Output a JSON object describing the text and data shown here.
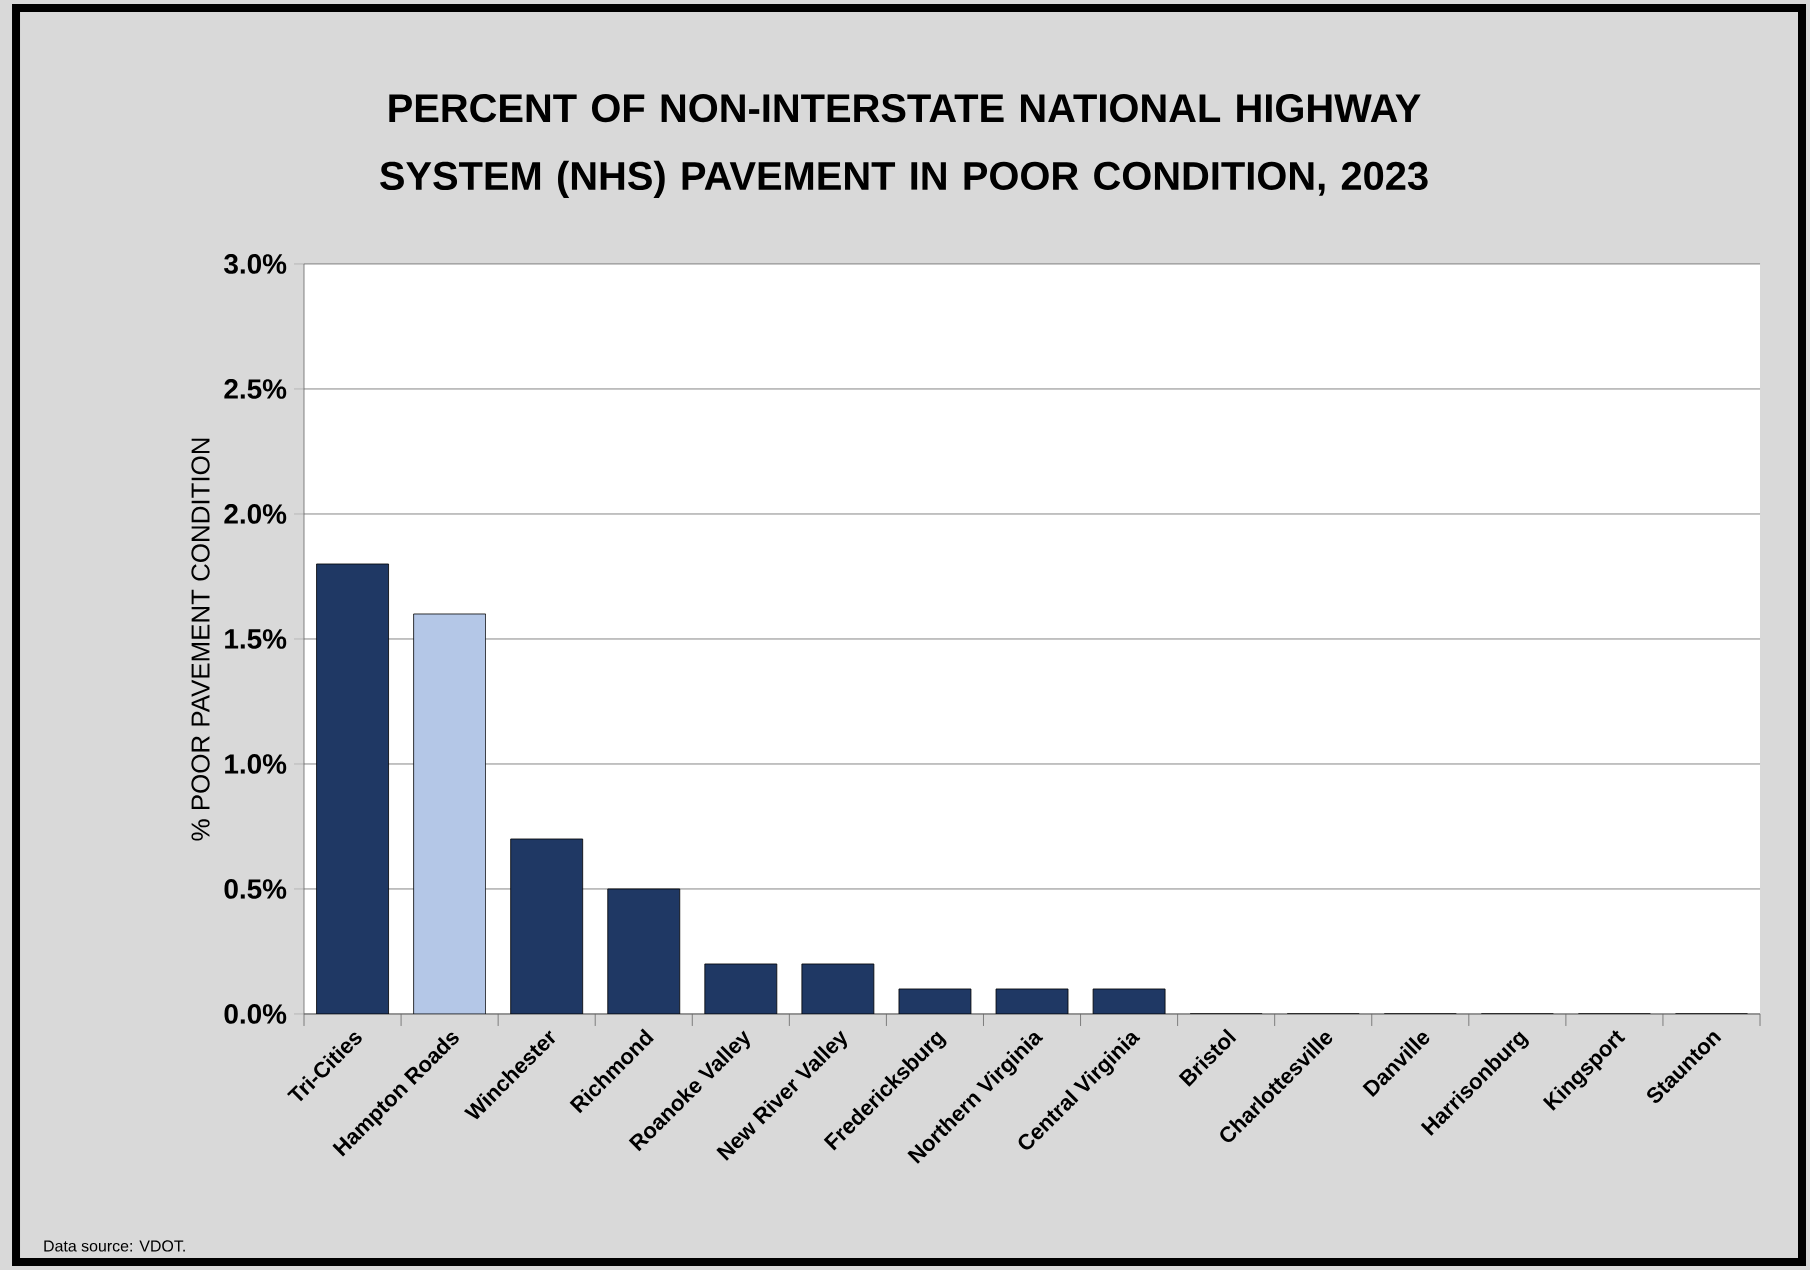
{
  "chart_data": {
    "type": "bar",
    "title": "PERCENT OF NON-INTERSTATE NATIONAL HIGHWAY SYSTEM (NHS) PAVEMENT IN POOR CONDITION, 2023",
    "ylabel": "% POOR PAVEMENT CONDITION",
    "annotations": [
      "Data source:  VDOT."
    ],
    "categories": [
      "Tri-Cities",
      "Hampton Roads",
      "Winchester",
      "Richmond",
      "Roanoke Valley",
      "New River Valley",
      "Fredericksburg",
      "Northern Virginia",
      "Central Virginia",
      "Bristol",
      "Charlottesville",
      "Danville",
      "Harrisonburg",
      "Kingsport",
      "Staunton"
    ],
    "values": [
      1.8,
      1.6,
      0.7,
      0.5,
      0.2,
      0.2,
      0.1,
      0.1,
      0.1,
      0,
      0,
      0,
      0,
      0,
      0
    ],
    "colors": [
      "#1f3864",
      "#b4c7e7",
      "#1f3864",
      "#1f3864",
      "#1f3864",
      "#1f3864",
      "#1f3864",
      "#1f3864",
      "#1f3864",
      "#1f3864",
      "#1f3864",
      "#1f3864",
      "#1f3864",
      "#1f3864",
      "#1f3864"
    ],
    "ylim": [
      0,
      3.0
    ],
    "yticks": [
      {
        "value": 0,
        "label": "0.0%"
      },
      {
        "value": 0.5,
        "label": "0.5%"
      },
      {
        "value": 1.0,
        "label": "1.0%"
      },
      {
        "value": 1.5,
        "label": "1.5%"
      },
      {
        "value": 2.0,
        "label": "2.0%"
      },
      {
        "value": 2.5,
        "label": "2.5%"
      },
      {
        "value": 3.0,
        "label": "3.0%"
      }
    ],
    "grid": "y"
  }
}
